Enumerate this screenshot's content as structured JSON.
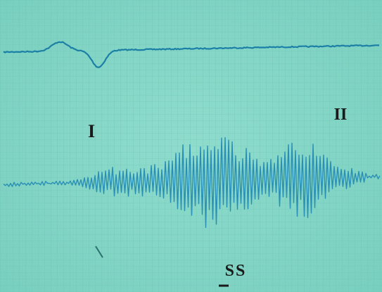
{
  "labels": {
    "wave_1": "I",
    "wave_2": "II",
    "marker": "SS"
  }
}
